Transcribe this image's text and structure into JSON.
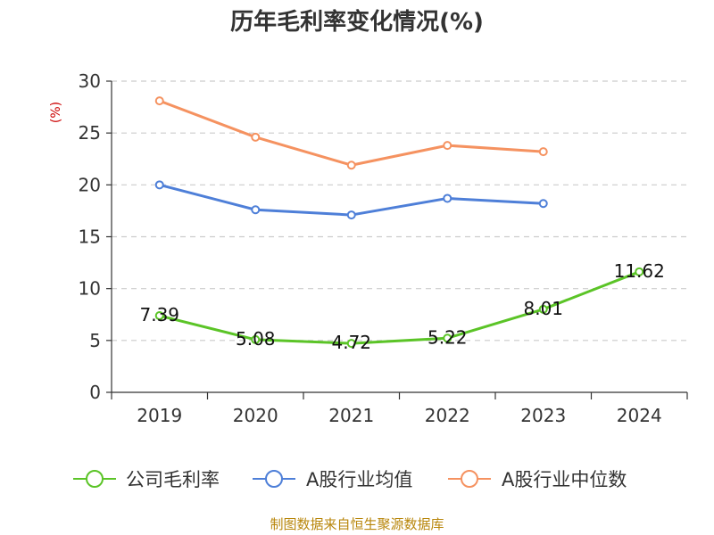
{
  "chart_data": {
    "type": "line",
    "title": "历年毛利率变化情况(%)",
    "ylabel": "(%)",
    "ylim": [
      0,
      30
    ],
    "yticks": [
      0,
      5,
      10,
      15,
      20,
      25,
      30
    ],
    "categories": [
      "2019",
      "2020",
      "2021",
      "2022",
      "2023",
      "2024"
    ],
    "grid": "horizontal-dashed",
    "legend": "bottom",
    "series": [
      {
        "name": "公司毛利率",
        "color": "#5bc427",
        "values": [
          7.39,
          5.08,
          4.72,
          5.22,
          8.01,
          11.62
        ],
        "data_labels": [
          "7.39",
          "5.08",
          "4.72",
          "5.22",
          "8.01",
          "11.62"
        ]
      },
      {
        "name": "A股行业均值",
        "color": "#4e7fd8",
        "values": [
          20.0,
          17.6,
          17.1,
          18.7,
          18.2,
          null
        ]
      },
      {
        "name": "A股行业中位数",
        "color": "#f59260",
        "values": [
          28.1,
          24.6,
          21.9,
          23.8,
          23.2,
          null
        ]
      }
    ]
  },
  "source": "制图数据来自恒生聚源数据库"
}
